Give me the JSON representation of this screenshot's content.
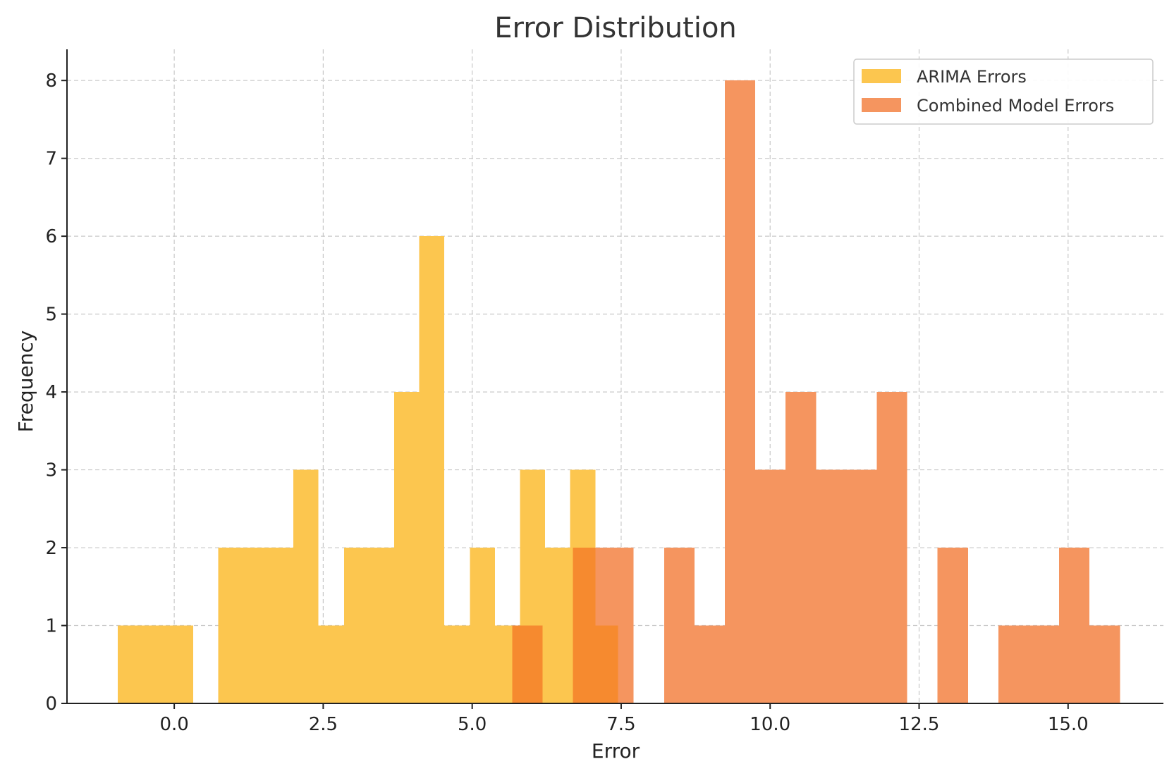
{
  "chart_data": {
    "type": "bar",
    "title": "Error Distribution",
    "xlabel": "Error",
    "ylabel": "Frequency",
    "xlim": [
      -1.8,
      16.6
    ],
    "ylim": [
      0,
      8.4
    ],
    "xticks": [
      0.0,
      2.5,
      5.0,
      7.5,
      10.0,
      12.5,
      15.0
    ],
    "xtick_labels": [
      "0.0",
      "2.5",
      "5.0",
      "7.5",
      "10.0",
      "12.5",
      "15.0"
    ],
    "yticks": [
      0,
      1,
      2,
      3,
      4,
      5,
      6,
      7,
      8
    ],
    "ytick_labels": [
      "0",
      "1",
      "2",
      "3",
      "4",
      "5",
      "6",
      "7",
      "8"
    ],
    "grid": true,
    "legend_position": "top-right",
    "series": [
      {
        "name": "ARIMA Errors",
        "color": "#fcc64f",
        "bins": [
          {
            "x0": -0.95,
            "x1": -0.53,
            "count": 1
          },
          {
            "x0": -0.53,
            "x1": -0.11,
            "count": 1
          },
          {
            "x0": -0.11,
            "x1": 0.32,
            "count": 1
          },
          {
            "x0": 0.74,
            "x1": 1.16,
            "count": 2
          },
          {
            "x0": 1.16,
            "x1": 1.58,
            "count": 2
          },
          {
            "x0": 1.58,
            "x1": 2.0,
            "count": 2
          },
          {
            "x0": 2.0,
            "x1": 2.42,
            "count": 3
          },
          {
            "x0": 2.42,
            "x1": 2.85,
            "count": 1
          },
          {
            "x0": 2.85,
            "x1": 3.27,
            "count": 2
          },
          {
            "x0": 3.27,
            "x1": 3.69,
            "count": 2
          },
          {
            "x0": 3.69,
            "x1": 4.11,
            "count": 4
          },
          {
            "x0": 4.11,
            "x1": 4.53,
            "count": 6
          },
          {
            "x0": 4.53,
            "x1": 4.96,
            "count": 1
          },
          {
            "x0": 4.96,
            "x1": 5.38,
            "count": 2
          },
          {
            "x0": 5.38,
            "x1": 5.8,
            "count": 1
          },
          {
            "x0": 5.8,
            "x1": 6.22,
            "count": 3
          },
          {
            "x0": 6.22,
            "x1": 6.64,
            "count": 2
          },
          {
            "x0": 6.64,
            "x1": 7.07,
            "count": 3
          }
        ]
      },
      {
        "name": "Combined Model Errors",
        "color": "#f5955f",
        "bins": [
          {
            "x0": 5.67,
            "x1": 6.18,
            "count": 1
          },
          {
            "x0": 6.69,
            "x1": 7.2,
            "count": 2
          },
          {
            "x0": 7.2,
            "x1": 7.71,
            "count": 2
          },
          {
            "x0": 8.22,
            "x1": 8.73,
            "count": 2
          },
          {
            "x0": 8.73,
            "x1": 9.24,
            "count": 1
          },
          {
            "x0": 9.24,
            "x1": 9.75,
            "count": 8
          },
          {
            "x0": 9.75,
            "x1": 10.26,
            "count": 3
          },
          {
            "x0": 10.26,
            "x1": 10.77,
            "count": 4
          },
          {
            "x0": 10.77,
            "x1": 11.28,
            "count": 3
          },
          {
            "x0": 11.28,
            "x1": 11.79,
            "count": 3
          },
          {
            "x0": 11.79,
            "x1": 12.3,
            "count": 4
          },
          {
            "x0": 12.81,
            "x1": 13.32,
            "count": 2
          },
          {
            "x0": 13.83,
            "x1": 14.34,
            "count": 1
          },
          {
            "x0": 14.34,
            "x1": 14.85,
            "count": 1
          },
          {
            "x0": 14.85,
            "x1": 15.36,
            "count": 2
          },
          {
            "x0": 15.36,
            "x1": 15.87,
            "count": 1
          }
        ]
      }
    ],
    "overlap_bins": [
      {
        "x0": 5.67,
        "x1": 6.18,
        "count": 1
      },
      {
        "x0": 6.69,
        "x1": 7.07,
        "count": 2
      },
      {
        "x0": 7.07,
        "x1": 7.45,
        "count": 1
      }
    ],
    "overlap_color": "#f68a2f"
  }
}
